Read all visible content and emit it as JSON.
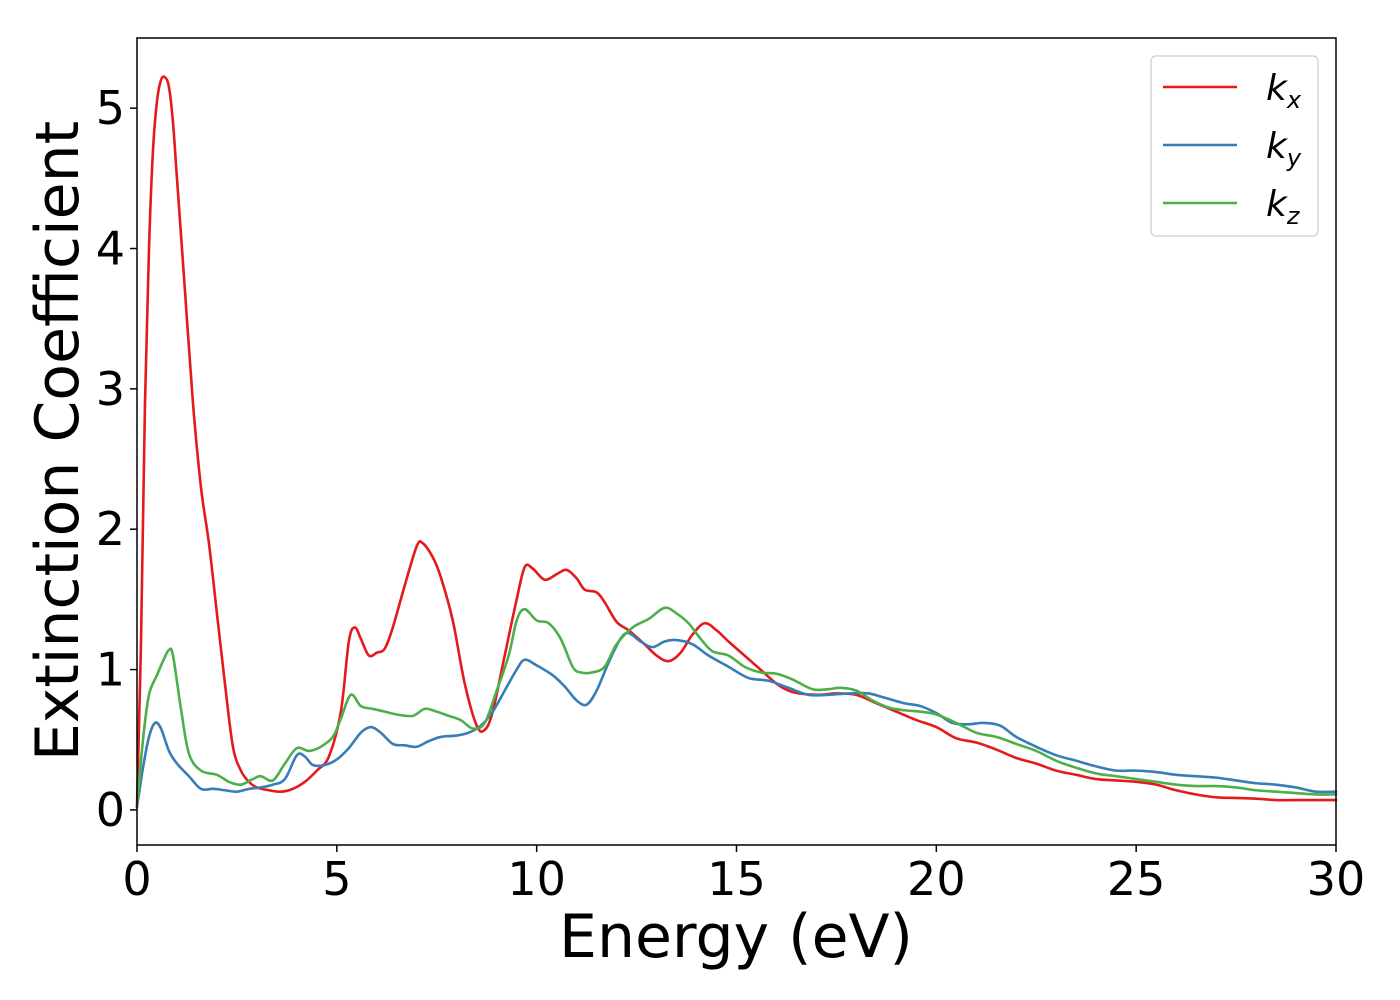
{
  "chart_data": {
    "type": "line",
    "title": "",
    "xlabel": "Energy (eV)",
    "ylabel": "Extinction Coefficient",
    "xlim": [
      0,
      30
    ],
    "ylim": [
      -0.25,
      5.5
    ],
    "xticks": [
      0,
      5,
      10,
      15,
      20,
      25,
      30
    ],
    "yticks": [
      0,
      1,
      2,
      3,
      4,
      5
    ],
    "grid": false,
    "legend_position": "top-right",
    "series": [
      {
        "name": "k",
        "subscript": "x",
        "color": "#e41a1c",
        "points": [
          [
            0,
            0.02
          ],
          [
            0.1,
            1.2
          ],
          [
            0.2,
            2.9
          ],
          [
            0.3,
            4.0
          ],
          [
            0.4,
            4.7
          ],
          [
            0.5,
            5.05
          ],
          [
            0.6,
            5.2
          ],
          [
            0.7,
            5.22
          ],
          [
            0.8,
            5.15
          ],
          [
            0.9,
            4.9
          ],
          [
            1.0,
            4.5
          ],
          [
            1.2,
            3.7
          ],
          [
            1.4,
            2.9
          ],
          [
            1.6,
            2.3
          ],
          [
            1.8,
            1.9
          ],
          [
            2.0,
            1.4
          ],
          [
            2.2,
            0.9
          ],
          [
            2.4,
            0.45
          ],
          [
            2.6,
            0.28
          ],
          [
            2.8,
            0.2
          ],
          [
            3.0,
            0.16
          ],
          [
            3.3,
            0.14
          ],
          [
            3.6,
            0.13
          ],
          [
            3.9,
            0.15
          ],
          [
            4.2,
            0.2
          ],
          [
            4.5,
            0.28
          ],
          [
            4.8,
            0.38
          ],
          [
            5.1,
            0.7
          ],
          [
            5.3,
            1.2
          ],
          [
            5.45,
            1.3
          ],
          [
            5.6,
            1.22
          ],
          [
            5.8,
            1.1
          ],
          [
            6.0,
            1.12
          ],
          [
            6.2,
            1.15
          ],
          [
            6.4,
            1.3
          ],
          [
            6.7,
            1.6
          ],
          [
            7.0,
            1.88
          ],
          [
            7.15,
            1.9
          ],
          [
            7.4,
            1.8
          ],
          [
            7.6,
            1.66
          ],
          [
            7.9,
            1.35
          ],
          [
            8.2,
            0.9
          ],
          [
            8.5,
            0.6
          ],
          [
            8.7,
            0.57
          ],
          [
            8.9,
            0.7
          ],
          [
            9.2,
            1.1
          ],
          [
            9.5,
            1.5
          ],
          [
            9.7,
            1.73
          ],
          [
            9.9,
            1.72
          ],
          [
            10.2,
            1.64
          ],
          [
            10.5,
            1.68
          ],
          [
            10.75,
            1.71
          ],
          [
            11.0,
            1.65
          ],
          [
            11.2,
            1.57
          ],
          [
            11.5,
            1.55
          ],
          [
            11.7,
            1.48
          ],
          [
            12.0,
            1.34
          ],
          [
            12.3,
            1.28
          ],
          [
            12.7,
            1.18
          ],
          [
            13.0,
            1.1
          ],
          [
            13.3,
            1.06
          ],
          [
            13.6,
            1.12
          ],
          [
            13.9,
            1.25
          ],
          [
            14.2,
            1.33
          ],
          [
            14.5,
            1.28
          ],
          [
            14.8,
            1.2
          ],
          [
            15.2,
            1.1
          ],
          [
            15.6,
            1.0
          ],
          [
            16.0,
            0.9
          ],
          [
            16.4,
            0.84
          ],
          [
            17.0,
            0.82
          ],
          [
            17.5,
            0.83
          ],
          [
            18.0,
            0.82
          ],
          [
            18.5,
            0.76
          ],
          [
            19.0,
            0.7
          ],
          [
            19.5,
            0.64
          ],
          [
            20.0,
            0.59
          ],
          [
            20.5,
            0.51
          ],
          [
            21.0,
            0.48
          ],
          [
            21.5,
            0.43
          ],
          [
            22.0,
            0.37
          ],
          [
            22.5,
            0.33
          ],
          [
            23.0,
            0.28
          ],
          [
            23.5,
            0.25
          ],
          [
            24.0,
            0.22
          ],
          [
            24.5,
            0.21
          ],
          [
            25.0,
            0.2
          ],
          [
            25.5,
            0.18
          ],
          [
            26.0,
            0.14
          ],
          [
            26.5,
            0.11
          ],
          [
            27.0,
            0.09
          ],
          [
            27.5,
            0.085
          ],
          [
            28.0,
            0.08
          ],
          [
            28.5,
            0.07
          ],
          [
            29.0,
            0.07
          ],
          [
            30.0,
            0.07
          ]
        ]
      },
      {
        "name": "k",
        "subscript": "y",
        "color": "#377eb8",
        "points": [
          [
            0,
            0.02
          ],
          [
            0.15,
            0.3
          ],
          [
            0.3,
            0.52
          ],
          [
            0.45,
            0.62
          ],
          [
            0.6,
            0.58
          ],
          [
            0.8,
            0.42
          ],
          [
            1.0,
            0.33
          ],
          [
            1.3,
            0.24
          ],
          [
            1.6,
            0.15
          ],
          [
            1.9,
            0.15
          ],
          [
            2.2,
            0.14
          ],
          [
            2.5,
            0.13
          ],
          [
            2.8,
            0.15
          ],
          [
            3.1,
            0.16
          ],
          [
            3.4,
            0.18
          ],
          [
            3.7,
            0.22
          ],
          [
            4.0,
            0.39
          ],
          [
            4.2,
            0.38
          ],
          [
            4.4,
            0.32
          ],
          [
            4.7,
            0.32
          ],
          [
            5.0,
            0.36
          ],
          [
            5.3,
            0.44
          ],
          [
            5.6,
            0.55
          ],
          [
            5.85,
            0.59
          ],
          [
            6.1,
            0.55
          ],
          [
            6.4,
            0.47
          ],
          [
            6.7,
            0.46
          ],
          [
            7.0,
            0.45
          ],
          [
            7.3,
            0.49
          ],
          [
            7.6,
            0.52
          ],
          [
            8.0,
            0.53
          ],
          [
            8.3,
            0.55
          ],
          [
            8.6,
            0.6
          ],
          [
            8.9,
            0.7
          ],
          [
            9.2,
            0.85
          ],
          [
            9.5,
            1.0
          ],
          [
            9.7,
            1.07
          ],
          [
            10.0,
            1.03
          ],
          [
            10.4,
            0.96
          ],
          [
            10.7,
            0.88
          ],
          [
            11.0,
            0.78
          ],
          [
            11.25,
            0.75
          ],
          [
            11.5,
            0.85
          ],
          [
            11.8,
            1.05
          ],
          [
            12.1,
            1.22
          ],
          [
            12.3,
            1.26
          ],
          [
            12.6,
            1.2
          ],
          [
            12.9,
            1.16
          ],
          [
            13.2,
            1.2
          ],
          [
            13.5,
            1.21
          ],
          [
            13.9,
            1.18
          ],
          [
            14.3,
            1.1
          ],
          [
            14.8,
            1.02
          ],
          [
            15.3,
            0.94
          ],
          [
            15.8,
            0.92
          ],
          [
            16.3,
            0.87
          ],
          [
            16.8,
            0.82
          ],
          [
            17.3,
            0.82
          ],
          [
            17.8,
            0.83
          ],
          [
            18.3,
            0.83
          ],
          [
            18.7,
            0.8
          ],
          [
            19.2,
            0.76
          ],
          [
            19.6,
            0.74
          ],
          [
            20.0,
            0.69
          ],
          [
            20.4,
            0.62
          ],
          [
            20.8,
            0.61
          ],
          [
            21.2,
            0.62
          ],
          [
            21.6,
            0.6
          ],
          [
            22.0,
            0.52
          ],
          [
            22.5,
            0.45
          ],
          [
            23.0,
            0.39
          ],
          [
            23.5,
            0.35
          ],
          [
            24.0,
            0.31
          ],
          [
            24.5,
            0.28
          ],
          [
            25.0,
            0.28
          ],
          [
            25.5,
            0.27
          ],
          [
            26.0,
            0.25
          ],
          [
            26.5,
            0.24
          ],
          [
            27.0,
            0.23
          ],
          [
            27.5,
            0.21
          ],
          [
            28.0,
            0.19
          ],
          [
            28.5,
            0.18
          ],
          [
            29.0,
            0.16
          ],
          [
            29.5,
            0.13
          ],
          [
            30.0,
            0.13
          ]
        ]
      },
      {
        "name": "k",
        "subscript": "z",
        "color": "#4daf4a",
        "points": [
          [
            0,
            0.02
          ],
          [
            0.15,
            0.5
          ],
          [
            0.3,
            0.82
          ],
          [
            0.5,
            0.96
          ],
          [
            0.65,
            1.06
          ],
          [
            0.8,
            1.14
          ],
          [
            0.9,
            1.1
          ],
          [
            1.1,
            0.72
          ],
          [
            1.3,
            0.4
          ],
          [
            1.6,
            0.28
          ],
          [
            2.0,
            0.25
          ],
          [
            2.3,
            0.2
          ],
          [
            2.6,
            0.18
          ],
          [
            2.9,
            0.22
          ],
          [
            3.1,
            0.24
          ],
          [
            3.4,
            0.21
          ],
          [
            3.7,
            0.33
          ],
          [
            4.0,
            0.44
          ],
          [
            4.3,
            0.42
          ],
          [
            4.6,
            0.45
          ],
          [
            4.9,
            0.52
          ],
          [
            5.1,
            0.65
          ],
          [
            5.35,
            0.82
          ],
          [
            5.6,
            0.74
          ],
          [
            5.9,
            0.72
          ],
          [
            6.2,
            0.7
          ],
          [
            6.5,
            0.68
          ],
          [
            6.9,
            0.67
          ],
          [
            7.2,
            0.72
          ],
          [
            7.5,
            0.7
          ],
          [
            7.8,
            0.67
          ],
          [
            8.1,
            0.64
          ],
          [
            8.4,
            0.58
          ],
          [
            8.7,
            0.62
          ],
          [
            9.0,
            0.85
          ],
          [
            9.3,
            1.1
          ],
          [
            9.5,
            1.35
          ],
          [
            9.7,
            1.43
          ],
          [
            10.0,
            1.35
          ],
          [
            10.3,
            1.33
          ],
          [
            10.6,
            1.22
          ],
          [
            10.9,
            1.02
          ],
          [
            11.1,
            0.98
          ],
          [
            11.4,
            0.98
          ],
          [
            11.7,
            1.02
          ],
          [
            12.0,
            1.18
          ],
          [
            12.4,
            1.3
          ],
          [
            12.8,
            1.36
          ],
          [
            13.2,
            1.44
          ],
          [
            13.5,
            1.4
          ],
          [
            13.8,
            1.33
          ],
          [
            14.1,
            1.22
          ],
          [
            14.4,
            1.13
          ],
          [
            14.8,
            1.1
          ],
          [
            15.2,
            1.02
          ],
          [
            15.6,
            0.98
          ],
          [
            16.0,
            0.97
          ],
          [
            16.4,
            0.93
          ],
          [
            16.9,
            0.86
          ],
          [
            17.3,
            0.86
          ],
          [
            17.6,
            0.87
          ],
          [
            18.0,
            0.85
          ],
          [
            18.4,
            0.78
          ],
          [
            18.8,
            0.73
          ],
          [
            19.2,
            0.71
          ],
          [
            19.6,
            0.7
          ],
          [
            20.0,
            0.68
          ],
          [
            20.5,
            0.62
          ],
          [
            21.0,
            0.55
          ],
          [
            21.5,
            0.52
          ],
          [
            22.0,
            0.47
          ],
          [
            22.5,
            0.42
          ],
          [
            23.0,
            0.35
          ],
          [
            23.5,
            0.3
          ],
          [
            24.0,
            0.26
          ],
          [
            24.5,
            0.24
          ],
          [
            25.0,
            0.22
          ],
          [
            25.5,
            0.2
          ],
          [
            26.0,
            0.18
          ],
          [
            26.5,
            0.17
          ],
          [
            27.0,
            0.17
          ],
          [
            27.5,
            0.16
          ],
          [
            28.0,
            0.14
          ],
          [
            28.5,
            0.13
          ],
          [
            29.0,
            0.12
          ],
          [
            29.5,
            0.11
          ],
          [
            30.0,
            0.11
          ]
        ]
      }
    ]
  }
}
